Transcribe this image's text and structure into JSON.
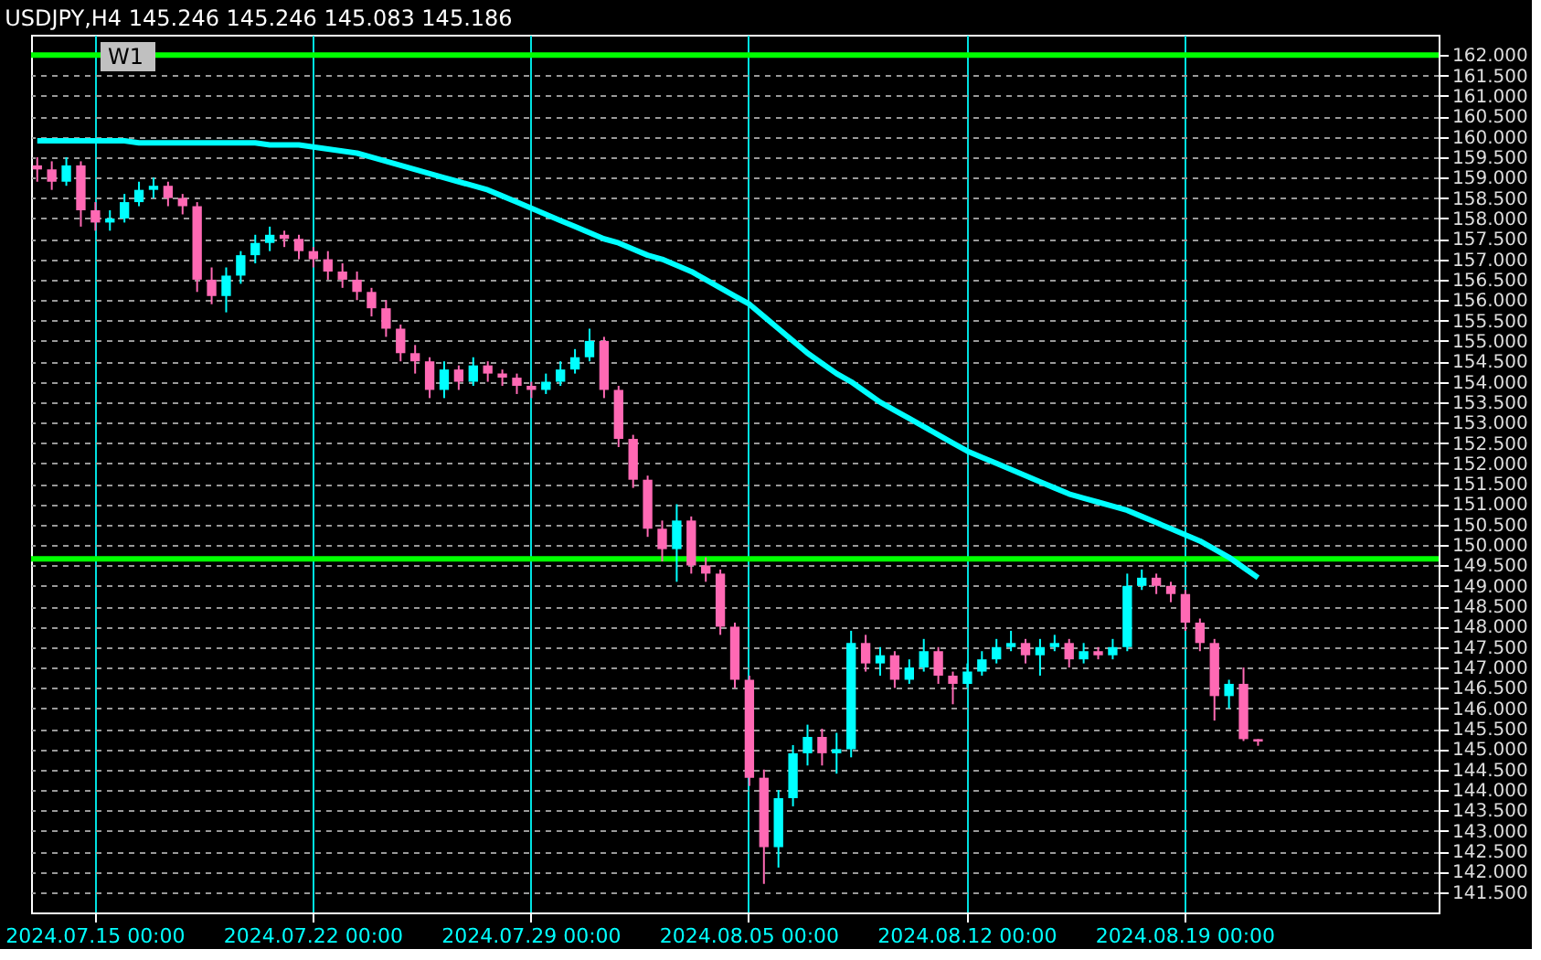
{
  "chart_data": {
    "type": "candlestick",
    "title": "USDJPY,H4  145.246 145.246 145.083 145.186",
    "categories": [
      null,
      null,
      null,
      null,
      "2024.07.15 00:00",
      null,
      null,
      null,
      null,
      null,
      null,
      null,
      null,
      null,
      null,
      null,
      null,
      null,
      null,
      "2024.07.22 00:00",
      null,
      null,
      null,
      null,
      null,
      null,
      null,
      null,
      null,
      null,
      null,
      null,
      null,
      null,
      "2024.07.29 00:00",
      null,
      null,
      null,
      null,
      null,
      null,
      null,
      null,
      null,
      null,
      null,
      null,
      null,
      null,
      "2024.08.05 00:00",
      null,
      null,
      null,
      null,
      null,
      null,
      null,
      null,
      null,
      null,
      null,
      null,
      null,
      null,
      "2024.08.12 00:00",
      null,
      null,
      null,
      null,
      null,
      null,
      null,
      null,
      null,
      null,
      null,
      null,
      null,
      null,
      "2024.08.19 00:00",
      null,
      null,
      null,
      null,
      null,
      null,
      null,
      null,
      null,
      null,
      null,
      null,
      null,
      null,
      null,
      null,
      null
    ],
    "ohlc": [
      [
        159.3,
        159.5,
        158.9,
        159.2
      ],
      [
        159.2,
        159.4,
        158.7,
        158.9
      ],
      [
        158.9,
        159.5,
        158.8,
        159.3
      ],
      [
        159.3,
        159.4,
        157.8,
        158.2
      ],
      [
        158.2,
        158.4,
        157.7,
        157.9
      ],
      [
        157.9,
        158.2,
        157.7,
        158.0
      ],
      [
        158.0,
        158.6,
        157.9,
        158.4
      ],
      [
        158.4,
        158.9,
        158.3,
        158.7
      ],
      [
        158.7,
        159.0,
        158.5,
        158.8
      ],
      [
        158.8,
        158.9,
        158.3,
        158.5
      ],
      [
        158.5,
        158.6,
        158.1,
        158.3
      ],
      [
        158.3,
        158.4,
        156.2,
        156.5
      ],
      [
        156.5,
        156.8,
        155.9,
        156.1
      ],
      [
        156.1,
        156.8,
        155.7,
        156.6
      ],
      [
        156.6,
        157.2,
        156.4,
        157.1
      ],
      [
        157.1,
        157.6,
        156.9,
        157.4
      ],
      [
        157.4,
        157.8,
        157.2,
        157.6
      ],
      [
        157.6,
        157.7,
        157.3,
        157.5
      ],
      [
        157.5,
        157.6,
        157.0,
        157.2
      ],
      [
        157.2,
        157.3,
        156.8,
        157.0
      ],
      [
        157.0,
        157.2,
        156.5,
        156.7
      ],
      [
        156.7,
        156.9,
        156.3,
        156.5
      ],
      [
        156.5,
        156.7,
        156.0,
        156.2
      ],
      [
        156.2,
        156.3,
        155.6,
        155.8
      ],
      [
        155.8,
        156.0,
        155.1,
        155.3
      ],
      [
        155.3,
        155.4,
        154.5,
        154.7
      ],
      [
        154.7,
        154.9,
        154.2,
        154.5
      ],
      [
        154.5,
        154.6,
        153.6,
        153.8
      ],
      [
        153.8,
        154.5,
        153.6,
        154.3
      ],
      [
        154.3,
        154.4,
        153.8,
        154.0
      ],
      [
        154.0,
        154.6,
        153.9,
        154.4
      ],
      [
        154.4,
        154.5,
        154.0,
        154.2
      ],
      [
        154.2,
        154.3,
        153.9,
        154.1
      ],
      [
        154.1,
        154.2,
        153.7,
        153.9
      ],
      [
        153.9,
        154.0,
        153.6,
        153.8
      ],
      [
        153.8,
        154.2,
        153.7,
        154.0
      ],
      [
        154.0,
        154.5,
        153.9,
        154.3
      ],
      [
        154.3,
        154.8,
        154.2,
        154.6
      ],
      [
        154.6,
        155.3,
        154.5,
        155.0
      ],
      [
        155.0,
        155.1,
        153.6,
        153.8
      ],
      [
        153.8,
        153.9,
        152.4,
        152.6
      ],
      [
        152.6,
        152.7,
        151.4,
        151.6
      ],
      [
        151.6,
        151.7,
        150.2,
        150.4
      ],
      [
        150.4,
        150.6,
        149.6,
        149.9
      ],
      [
        149.9,
        151.0,
        149.1,
        150.6
      ],
      [
        150.6,
        150.7,
        149.3,
        149.5
      ],
      [
        149.5,
        149.7,
        149.1,
        149.3
      ],
      [
        149.3,
        149.4,
        147.8,
        148.0
      ],
      [
        148.0,
        148.1,
        146.5,
        146.7
      ],
      [
        146.7,
        146.8,
        144.1,
        144.3
      ],
      [
        144.3,
        144.5,
        141.7,
        142.6
      ],
      [
        142.6,
        144.0,
        142.1,
        143.8
      ],
      [
        143.8,
        145.1,
        143.6,
        144.9
      ],
      [
        144.9,
        145.6,
        144.6,
        145.3
      ],
      [
        145.3,
        145.5,
        144.6,
        144.9
      ],
      [
        144.9,
        145.4,
        144.4,
        145.0
      ],
      [
        145.0,
        147.9,
        144.8,
        147.6
      ],
      [
        147.6,
        147.8,
        146.9,
        147.1
      ],
      [
        147.1,
        147.5,
        146.8,
        147.3
      ],
      [
        147.3,
        147.4,
        146.5,
        146.7
      ],
      [
        146.7,
        147.2,
        146.6,
        147.0
      ],
      [
        147.0,
        147.7,
        146.9,
        147.4
      ],
      [
        147.4,
        147.5,
        146.6,
        146.8
      ],
      [
        146.8,
        146.9,
        146.1,
        146.6
      ],
      [
        146.6,
        147.1,
        146.5,
        146.9
      ],
      [
        146.9,
        147.4,
        146.8,
        147.2
      ],
      [
        147.2,
        147.7,
        147.1,
        147.5
      ],
      [
        147.5,
        147.9,
        147.4,
        147.6
      ],
      [
        147.6,
        147.7,
        147.1,
        147.3
      ],
      [
        147.3,
        147.7,
        146.8,
        147.5
      ],
      [
        147.5,
        147.8,
        147.4,
        147.6
      ],
      [
        147.6,
        147.7,
        147.0,
        147.2
      ],
      [
        147.2,
        147.6,
        147.1,
        147.4
      ],
      [
        147.4,
        147.5,
        147.2,
        147.3
      ],
      [
        147.3,
        147.7,
        147.2,
        147.5
      ],
      [
        147.5,
        149.3,
        147.4,
        149.0
      ],
      [
        149.0,
        149.4,
        148.9,
        149.2
      ],
      [
        149.2,
        149.3,
        148.8,
        149.0
      ],
      [
        149.0,
        149.1,
        148.6,
        148.8
      ],
      [
        148.8,
        148.9,
        147.9,
        148.1
      ],
      [
        148.1,
        148.2,
        147.4,
        147.6
      ],
      [
        147.6,
        147.7,
        145.7,
        146.3
      ],
      [
        146.3,
        146.7,
        146.0,
        146.6
      ],
      [
        146.6,
        147.0,
        145.2,
        145.246
      ],
      [
        145.246,
        145.246,
        145.083,
        145.186
      ],
      null,
      null,
      null,
      null,
      null,
      null,
      null,
      null,
      null,
      null,
      null,
      null
    ],
    "colors": [
      "#ff69b4",
      "#ff69b4",
      "#00ffff",
      "#ff69b4",
      "#ff69b4",
      "#00ffff",
      "#00ffff",
      "#00ffff",
      "#00ffff",
      "#ff69b4",
      "#ff69b4",
      "#ff69b4",
      "#ff69b4",
      "#00ffff",
      "#00ffff",
      "#00ffff",
      "#00ffff",
      "#ff69b4",
      "#ff69b4",
      "#ff69b4",
      "#ff69b4",
      "#ff69b4",
      "#ff69b4",
      "#ff69b4",
      "#ff69b4",
      "#ff69b4",
      "#ff69b4",
      "#ff69b4",
      "#00ffff",
      "#ff69b4",
      "#00ffff",
      "#ff69b4",
      "#ff69b4",
      "#ff69b4",
      "#ff69b4",
      "#00ffff",
      "#00ffff",
      "#00ffff",
      "#00ffff",
      "#ff69b4",
      "#ff69b4",
      "#ff69b4",
      "#ff69b4",
      "#ff69b4",
      "#00ffff",
      "#ff69b4",
      "#ff69b4",
      "#ff69b4",
      "#ff69b4",
      "#ff69b4",
      "#ff69b4",
      "#00ffff",
      "#00ffff",
      "#00ffff",
      "#ff69b4",
      "#00ffff",
      "#00ffff",
      "#ff69b4",
      "#00ffff",
      "#ff69b4",
      "#00ffff",
      "#00ffff",
      "#ff69b4",
      "#ff69b4",
      "#00ffff",
      "#00ffff",
      "#00ffff",
      "#00ffff",
      "#ff69b4",
      "#00ffff",
      "#00ffff",
      "#ff69b4",
      "#00ffff",
      "#ff69b4",
      "#00ffff",
      "#00ffff",
      "#00ffff",
      "#ff69b4",
      "#ff69b4",
      "#ff69b4",
      "#ff69b4",
      "#ff69b4",
      "#00ffff",
      "#ff69b4",
      "#ff69b4",
      null,
      null,
      null,
      null,
      null,
      null,
      null,
      null,
      null,
      null,
      null,
      null
    ],
    "series": [
      {
        "type": "line",
        "color": "#00ffff",
        "values": [
          159.9,
          159.9,
          159.9,
          159.9,
          159.9,
          159.9,
          159.9,
          159.85,
          159.85,
          159.85,
          159.85,
          159.85,
          159.85,
          159.85,
          159.85,
          159.85,
          159.8,
          159.8,
          159.8,
          159.75,
          159.7,
          159.65,
          159.6,
          159.5,
          159.4,
          159.3,
          159.2,
          159.1,
          159.0,
          158.9,
          158.8,
          158.7,
          158.55,
          158.4,
          158.25,
          158.1,
          157.95,
          157.8,
          157.65,
          157.5,
          157.4,
          157.25,
          157.1,
          157.0,
          156.85,
          156.7,
          156.5,
          156.3,
          156.1,
          155.9,
          155.6,
          155.3,
          155.0,
          154.7,
          154.45,
          154.2,
          154.0,
          153.75,
          153.5,
          153.3,
          153.1,
          152.9,
          152.7,
          152.5,
          152.3,
          152.15,
          152.0,
          151.85,
          151.7,
          151.55,
          151.4,
          151.25,
          151.15,
          151.05,
          150.95,
          150.85,
          150.7,
          150.55,
          150.4,
          150.25,
          150.1,
          149.9,
          149.7,
          149.45,
          149.2,
          null,
          null,
          null,
          null,
          null,
          null,
          null,
          null,
          null,
          null,
          null,
          null
        ]
      }
    ],
    "ylim": [
      141.0,
      162.5
    ],
    "yticks": [
      {
        "value": 141.5,
        "label": "141.500"
      },
      {
        "value": 142,
        "label": "142.000"
      },
      {
        "value": 142.5,
        "label": "142.500"
      },
      {
        "value": 143,
        "label": "143.000"
      },
      {
        "value": 143.5,
        "label": "143.500"
      },
      {
        "value": 144,
        "label": "144.000"
      },
      {
        "value": 144.5,
        "label": "144.500"
      },
      {
        "value": 145,
        "label": "145.000"
      },
      {
        "value": 145.5,
        "label": "145.500"
      },
      {
        "value": 146,
        "label": "146.000"
      },
      {
        "value": 146.5,
        "label": "146.500"
      },
      {
        "value": 147,
        "label": "147.000"
      },
      {
        "value": 147.5,
        "label": "147.500"
      },
      {
        "value": 148,
        "label": "148.000"
      },
      {
        "value": 148.5,
        "label": "148.500"
      },
      {
        "value": 149,
        "label": "149.000"
      },
      {
        "value": 149.5,
        "label": "149.500"
      },
      {
        "value": 150,
        "label": "150.000"
      },
      {
        "value": 150.5,
        "label": "150.500"
      },
      {
        "value": 151,
        "label": "151.000"
      },
      {
        "value": 151.5,
        "label": "151.500"
      },
      {
        "value": 152,
        "label": "152.000"
      },
      {
        "value": 152.5,
        "label": "152.500"
      },
      {
        "value": 153,
        "label": "153.000"
      },
      {
        "value": 153.5,
        "label": "153.500"
      },
      {
        "value": 154,
        "label": "154.000"
      },
      {
        "value": 154.5,
        "label": "154.500"
      },
      {
        "value": 155,
        "label": "155.000"
      },
      {
        "value": 155.5,
        "label": "155.500"
      },
      {
        "value": 156,
        "label": "156.000"
      },
      {
        "value": 156.5,
        "label": "156.500"
      },
      {
        "value": 157,
        "label": "157.000"
      },
      {
        "value": 157.5,
        "label": "157.500"
      },
      {
        "value": 158,
        "label": "158.000"
      },
      {
        "value": 158.5,
        "label": "158.500"
      },
      {
        "value": 159,
        "label": "159.000"
      },
      {
        "value": 159.5,
        "label": "159.500"
      },
      {
        "value": 160,
        "label": "160.000"
      },
      {
        "value": 160.5,
        "label": "160.500"
      },
      {
        "value": 161,
        "label": "161.000"
      },
      {
        "value": 161.5,
        "label": "161.500"
      },
      {
        "value": 162,
        "label": "162.000"
      }
    ],
    "grid": true,
    "ref_lines": [
      {
        "axis": "y",
        "value": 162.0,
        "color": "#00ff00"
      },
      {
        "axis": "y",
        "value": 149.66,
        "color": "#00ff00"
      }
    ],
    "annotations": [
      "W1"
    ]
  }
}
